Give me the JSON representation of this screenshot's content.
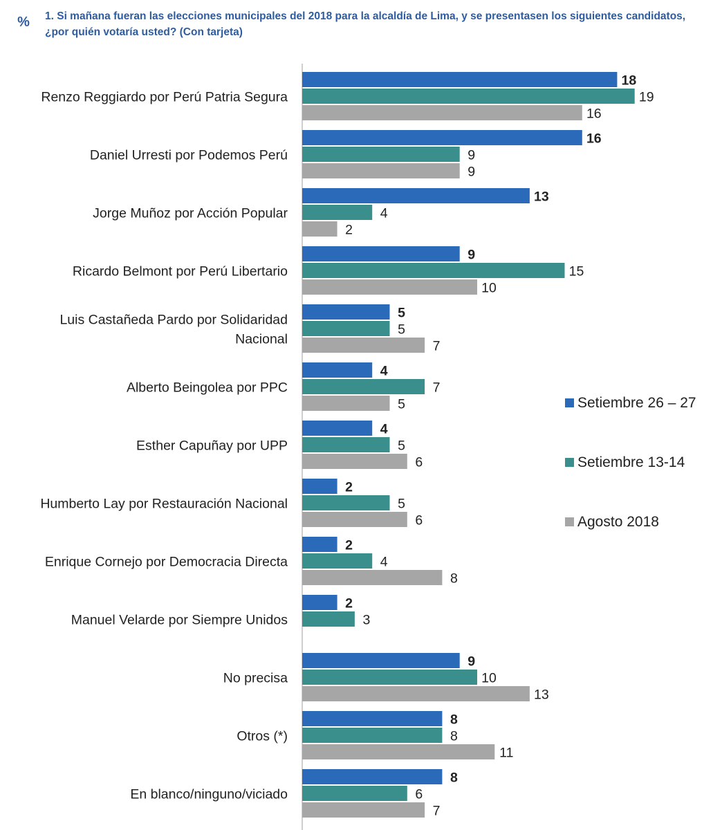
{
  "header": {
    "icon": "percent-icon",
    "icon_glyph": "%",
    "title": "1. Si mañana fueran las elecciones municipales del 2018 para la alcaldía de Lima, y se presentasen los siguientes candidatos, ¿por quién votaría usted? (Con tarjeta)"
  },
  "chart_data": {
    "type": "bar",
    "orientation": "horizontal",
    "title": "1. Si mañana fueran las elecciones municipales del 2018 para la alcaldía de Lima, y se presentasen los siguientes candidatos, ¿por quién votaría usted? (Con tarjeta)",
    "xlabel": "",
    "ylabel": "",
    "xlim": [
      0,
      20
    ],
    "grid": false,
    "legend_position": "right",
    "categories": [
      [
        "Renzo Reggiardo por Perú Patria Segura"
      ],
      [
        "Daniel Urresti por Podemos Perú"
      ],
      [
        "Jorge Muñoz por Acción Popular"
      ],
      [
        "Ricardo Belmont por Perú Libertario"
      ],
      [
        "Luis Castañeda Pardo por Solidaridad",
        "Nacional"
      ],
      [
        "Alberto Beingolea por PPC"
      ],
      [
        "Esther Capuñay por UPP"
      ],
      [
        "Humberto Lay por Restauración Nacional"
      ],
      [
        "Enrique Cornejo por Democracia Directa"
      ],
      [
        "Manuel Velarde por Siempre Unidos"
      ],
      [
        "No precisa"
      ],
      [
        "Otros (*)"
      ],
      [
        "En blanco/ninguno/viciado"
      ]
    ],
    "series": [
      {
        "name": "Setiembre 26 – 27",
        "color": "#2a6ab8",
        "label_color": "#2e5a8f",
        "values": [
          18,
          16,
          13,
          9,
          5,
          4,
          4,
          2,
          2,
          2,
          9,
          8,
          8
        ]
      },
      {
        "name": "Setiembre 13-14",
        "color": "#3a8f8c",
        "label_color": "#222222",
        "values": [
          19,
          9,
          4,
          15,
          5,
          7,
          5,
          5,
          4,
          3,
          10,
          8,
          6
        ]
      },
      {
        "name": "Agosto 2018",
        "color": "#a6a6a6",
        "label_color": "#222222",
        "values": [
          16,
          9,
          2,
          10,
          7,
          5,
          6,
          6,
          8,
          null,
          13,
          11,
          7
        ]
      }
    ]
  }
}
